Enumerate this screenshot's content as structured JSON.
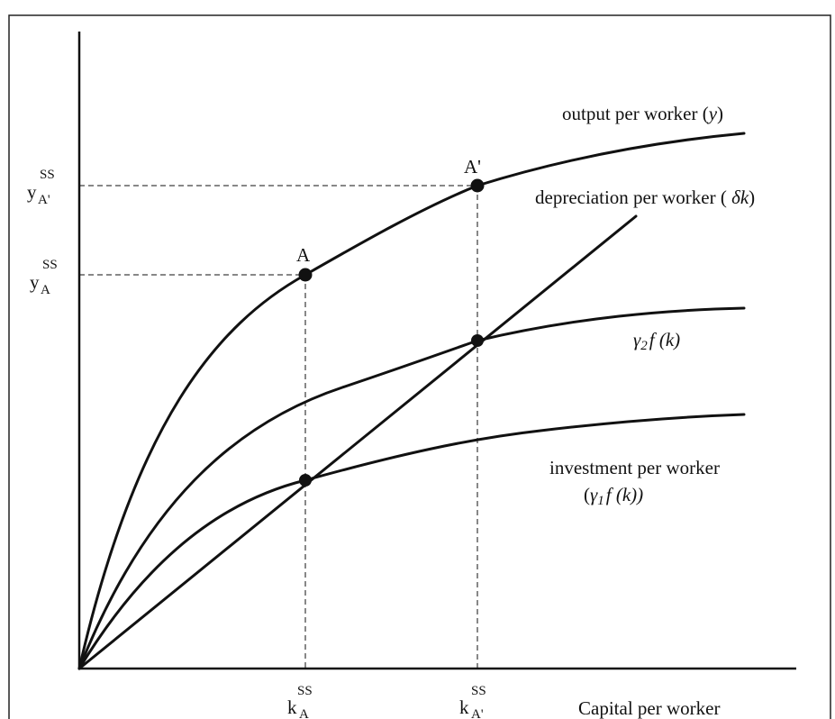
{
  "curves": {
    "output": {
      "label": "output per worker (",
      "var": "y",
      "close": ")"
    },
    "depreciation": {
      "label": "depreciation per worker ( ",
      "var": "δk",
      "close": ")"
    },
    "gamma2": {
      "gamma": "γ",
      "sub": "2",
      "func": "f (k)"
    },
    "investment": {
      "line1": "investment per worker",
      "open": "(",
      "gamma": "γ",
      "sub": "1",
      "func": "f (k))"
    }
  },
  "points": {
    "A": "A",
    "A_prime": "A'"
  },
  "y_axis": {
    "yA": {
      "base": "y",
      "sub": "A",
      "sup": "SS"
    },
    "yAp": {
      "base": "y",
      "sub": "A'",
      "sup": "SS"
    }
  },
  "x_axis": {
    "label": "Capital per worker",
    "kA": {
      "base": "k",
      "sub": "A",
      "sup": "SS"
    },
    "kAp": {
      "base": "k",
      "sub": "A'",
      "sup": "SS"
    }
  },
  "colors": {
    "ink": "#111111",
    "frame": "#222222"
  }
}
